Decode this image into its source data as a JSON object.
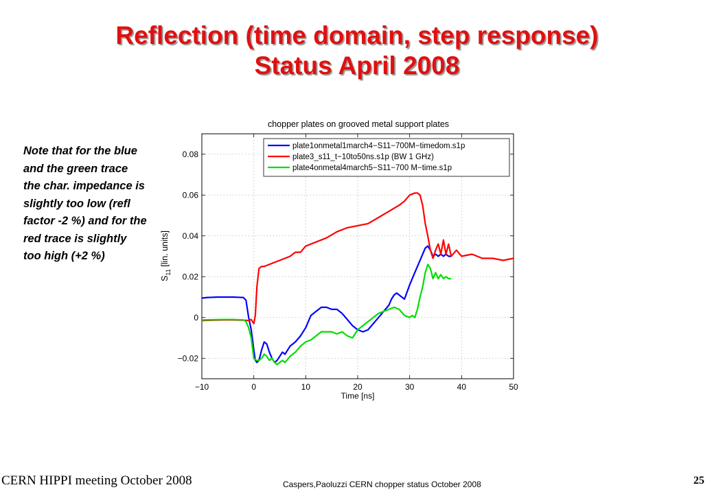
{
  "slide": {
    "title_line1": "Reflection (time domain, step response)",
    "title_line2": "Status April 2008",
    "note": "Note that for the blue and the green trace the char. impedance is slightly too low (refl factor -2 %) and for the red trace is slightly too high (+2 %)",
    "footer_left": "CERN HIPPI meeting October 2008",
    "footer_center": "Caspers,Paoluzzi CERN chopper status October 2008",
    "page_number": "25"
  },
  "chart_data": {
    "type": "line",
    "title": "chopper plates on grooved metal support plates",
    "xlabel": "Time [ns]",
    "ylabel_main": "S",
    "ylabel_sub": "11",
    "ylabel_rest": " [lin. units]",
    "xlim": [
      -10,
      50
    ],
    "ylim": [
      -0.03,
      0.09
    ],
    "xticks": [
      -10,
      0,
      10,
      20,
      30,
      40,
      50
    ],
    "xtick_labels": [
      "−10",
      "0",
      "10",
      "20",
      "30",
      "40",
      "50"
    ],
    "yticks": [
      -0.02,
      0,
      0.02,
      0.04,
      0.06,
      0.08
    ],
    "ytick_labels": [
      "−0.02",
      "0",
      "0.02",
      "0.04",
      "0.06",
      "0.08"
    ],
    "grid": true,
    "legend_position": "top-right",
    "series": [
      {
        "name": "plate1onmetal1march4−S11−700M−timedom.s1p",
        "color": "#0000ff",
        "x": [
          -10,
          -9,
          -8,
          -7,
          -6,
          -5,
          -4,
          -3,
          -2,
          -1.5,
          -1,
          -0.5,
          0,
          0.3,
          0.6,
          1,
          1.5,
          2,
          2.5,
          3,
          3.5,
          4,
          4.5,
          5,
          5.5,
          6,
          7,
          8,
          9,
          10,
          11,
          12,
          13,
          14,
          15,
          16,
          17,
          18,
          19,
          20,
          21,
          22,
          23,
          24,
          25,
          26,
          26.5,
          27,
          27.5,
          28,
          29,
          30,
          31,
          32,
          33,
          33.5,
          34,
          34.5,
          35,
          35.5,
          36,
          36.5,
          37,
          37.5,
          38
        ],
        "y": [
          0.0095,
          0.0098,
          0.0099,
          0.01,
          0.01,
          0.01,
          0.01,
          0.0099,
          0.0098,
          0.0085,
          0.0002,
          -0.006,
          -0.016,
          -0.021,
          -0.022,
          -0.021,
          -0.016,
          -0.012,
          -0.013,
          -0.017,
          -0.02,
          -0.022,
          -0.021,
          -0.019,
          -0.017,
          -0.018,
          -0.014,
          -0.012,
          -0.009,
          -0.005,
          0.001,
          0.003,
          0.005,
          0.005,
          0.004,
          0.004,
          0.002,
          -0.001,
          -0.004,
          -0.006,
          -0.007,
          -0.006,
          -0.003,
          0.0,
          0.003,
          0.006,
          0.009,
          0.011,
          0.012,
          0.011,
          0.009,
          0.016,
          0.022,
          0.028,
          0.034,
          0.035,
          0.033,
          0.03,
          0.031,
          0.03,
          0.031,
          0.03,
          0.031,
          0.03,
          0.03
        ]
      },
      {
        "name": "plate3_s11_t−10to50ns.s1p (BW 1 GHz)",
        "color": "#ff0000",
        "x": [
          -10,
          -8,
          -6,
          -4,
          -2,
          -1,
          -0.5,
          0,
          0.3,
          0.6,
          1,
          1.5,
          2,
          3,
          4,
          5,
          6,
          7,
          8,
          9,
          10,
          12,
          14,
          16,
          18,
          20,
          22,
          24,
          26,
          28,
          29,
          30,
          31,
          31.5,
          32,
          32.5,
          33,
          33.5,
          34,
          34.5,
          35,
          35.5,
          36,
          36.5,
          37,
          37.5,
          38,
          39,
          40,
          42,
          44,
          46,
          48,
          50
        ],
        "y": [
          -0.0015,
          -0.0013,
          -0.0012,
          -0.0012,
          -0.0013,
          -0.0015,
          -0.001,
          -0.003,
          0.001,
          0.015,
          0.024,
          0.025,
          0.025,
          0.026,
          0.027,
          0.028,
          0.029,
          0.03,
          0.032,
          0.032,
          0.035,
          0.037,
          0.039,
          0.042,
          0.044,
          0.045,
          0.046,
          0.049,
          0.052,
          0.055,
          0.057,
          0.06,
          0.061,
          0.061,
          0.06,
          0.055,
          0.046,
          0.04,
          0.033,
          0.029,
          0.033,
          0.036,
          0.031,
          0.038,
          0.031,
          0.036,
          0.03,
          0.033,
          0.03,
          0.031,
          0.029,
          0.029,
          0.028,
          0.029
        ]
      },
      {
        "name": "plate4onmetal4march5−S11−700 M−time.s1p",
        "color": "#00dd00",
        "x": [
          -10,
          -8,
          -6,
          -4,
          -2,
          -1.5,
          -1,
          -0.5,
          0,
          0.5,
          1,
          1.5,
          2,
          2.5,
          3,
          3.5,
          4,
          4.5,
          5,
          5.5,
          6,
          7,
          8,
          9,
          10,
          11,
          12,
          13,
          14,
          15,
          16,
          17,
          18,
          19,
          20,
          21,
          22,
          23,
          24,
          25,
          26,
          27,
          28,
          29,
          30,
          30.5,
          31,
          31.5,
          32,
          32.5,
          33,
          33.5,
          34,
          34.5,
          35,
          35.5,
          36,
          36.5,
          37,
          37.5,
          38
        ],
        "y": [
          -0.0012,
          -0.0011,
          -0.001,
          -0.001,
          -0.0012,
          -0.002,
          -0.005,
          -0.01,
          -0.02,
          -0.021,
          -0.021,
          -0.02,
          -0.018,
          -0.019,
          -0.021,
          -0.02,
          -0.022,
          -0.023,
          -0.022,
          -0.021,
          -0.022,
          -0.019,
          -0.017,
          -0.014,
          -0.012,
          -0.011,
          -0.009,
          -0.007,
          -0.007,
          -0.007,
          -0.008,
          -0.007,
          -0.009,
          -0.01,
          -0.006,
          -0.004,
          -0.002,
          0.0,
          0.002,
          0.003,
          0.004,
          0.005,
          0.004,
          0.001,
          0.0,
          0.001,
          0.0,
          0.004,
          0.01,
          0.015,
          0.022,
          0.026,
          0.024,
          0.019,
          0.022,
          0.019,
          0.021,
          0.019,
          0.02,
          0.019,
          0.019
        ]
      }
    ]
  }
}
